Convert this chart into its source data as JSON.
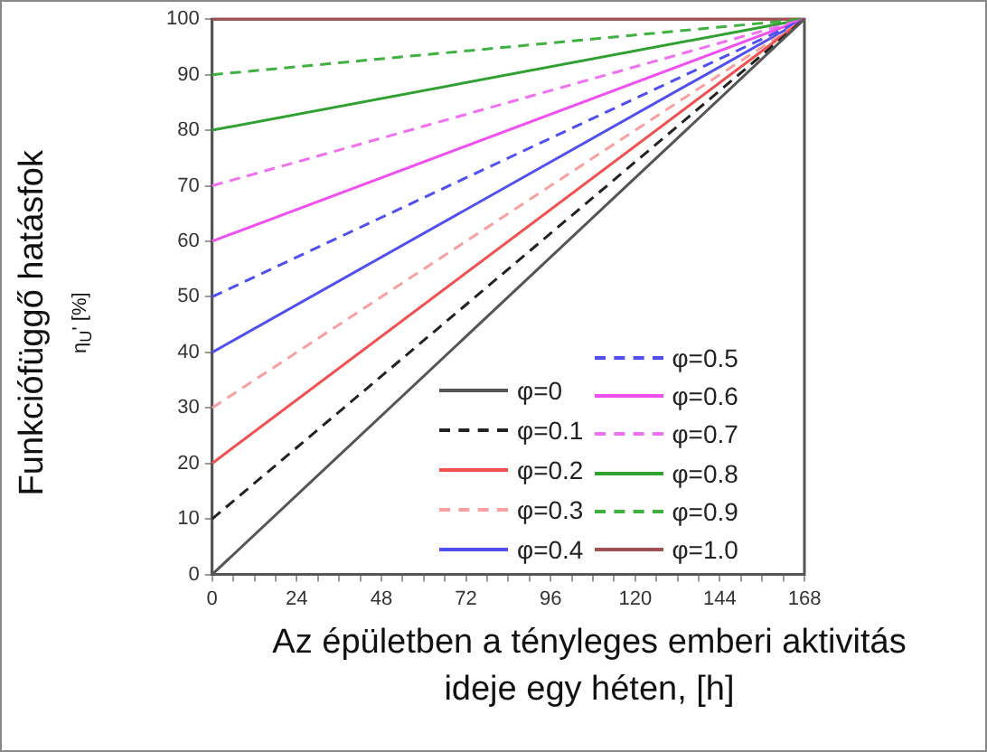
{
  "chart_data": {
    "type": "line",
    "xlabel": "Az épületben a tényleges emberi aktivitás ideje egy héten, [h]",
    "ylabel": "Funkciófüggő hatásfok η$_{U}$' [%]",
    "x": [
      0,
      168
    ],
    "xlim": [
      0,
      168
    ],
    "ylim": [
      0,
      100
    ],
    "xticks": [
      0,
      {
        "value": 6,
        "label": null
      },
      {
        "value": 12,
        "label": null
      },
      {
        "value": 18,
        "label": null
      },
      24,
      {
        "value": 30,
        "label": null
      },
      {
        "value": 36,
        "label": null
      },
      {
        "value": 42,
        "label": null
      },
      48,
      {
        "value": 54,
        "label": null
      },
      {
        "value": 60,
        "label": null
      },
      {
        "value": 66,
        "label": null
      },
      72,
      {
        "value": 78,
        "label": null
      },
      {
        "value": 84,
        "label": null
      },
      {
        "value": 90,
        "label": null
      },
      96,
      {
        "value": 102,
        "label": null
      },
      {
        "value": 108,
        "label": null
      },
      {
        "value": 114,
        "label": null
      },
      120,
      {
        "value": 126,
        "label": null
      },
      {
        "value": 132,
        "label": null
      },
      {
        "value": 138,
        "label": null
      },
      144,
      {
        "value": 150,
        "label": null
      },
      {
        "value": 156,
        "label": null
      },
      {
        "value": 162,
        "label": null
      },
      168
    ],
    "yticks": [
      0,
      10,
      20,
      30,
      40,
      50,
      60,
      70,
      80,
      90,
      100
    ],
    "grid": false,
    "legend": "bottom right",
    "marker": "none",
    "series": [
      {
        "name": "φ=0",
        "color": "#555555",
        "line_style": "solid",
        "values": [
          0,
          100
        ]
      },
      {
        "name": "φ=0.1",
        "color": "#222222",
        "line_style": "dashed",
        "values": [
          10,
          100
        ]
      },
      {
        "name": "φ=0.2",
        "color": "#f05050",
        "line_style": "solid",
        "values": [
          20,
          100
        ]
      },
      {
        "name": "φ=0.3",
        "color": "#f8a0a0",
        "line_style": "dashed",
        "values": [
          30,
          100
        ]
      },
      {
        "name": "φ=0.4",
        "color": "#5050f0",
        "line_style": "solid",
        "values": [
          40,
          100
        ]
      },
      {
        "name": "φ=0.5",
        "color": "#5050f0",
        "line_style": "dashed",
        "values": [
          50,
          100
        ]
      },
      {
        "name": "φ=0.6",
        "color": "#f050f0",
        "line_style": "solid",
        "values": [
          60,
          100
        ]
      },
      {
        "name": "φ=0.7",
        "color": "#f070f0",
        "line_style": "dashed",
        "values": [
          70,
          100
        ]
      },
      {
        "name": "φ=0.8",
        "color": "#30a030",
        "line_style": "solid",
        "values": [
          80,
          100
        ]
      },
      {
        "name": "φ=0.9",
        "color": "#40b040",
        "line_style": "dashed",
        "values": [
          90,
          100
        ]
      },
      {
        "name": "φ=1.0",
        "color": "#a05050",
        "line_style": "solid",
        "values": [
          100,
          100
        ]
      }
    ]
  }
}
